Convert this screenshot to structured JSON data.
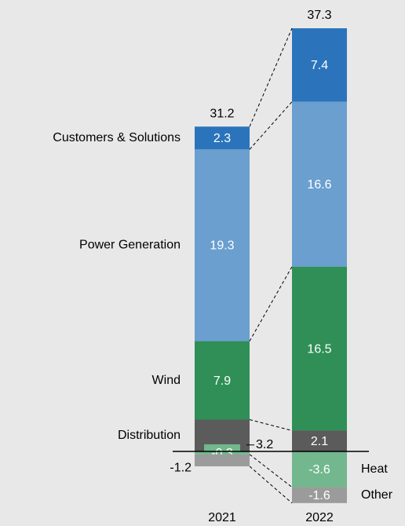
{
  "chart_data": {
    "type": "stacked_bar",
    "categories": [
      "2021",
      "2022"
    ],
    "series": [
      {
        "name": "Customers & Solutions",
        "color": "#2b74bb",
        "values": [
          2.3,
          7.4
        ]
      },
      {
        "name": "Power Generation",
        "color": "#6a9fcf",
        "values": [
          19.3,
          16.6
        ]
      },
      {
        "name": "Wind",
        "color": "#2f8f56",
        "values": [
          7.9,
          16.5
        ]
      },
      {
        "name": "Distribution",
        "color": "#5b5b5b",
        "values": [
          3.2,
          2.1
        ]
      },
      {
        "name": "Heat",
        "color": "#72b78d",
        "values": [
          -0.3,
          -3.6
        ]
      },
      {
        "name": "Other",
        "color": "#9b9b9b",
        "values": [
          -1.2,
          -1.6
        ]
      }
    ],
    "totals": [
      31.2,
      37.3
    ]
  }
}
